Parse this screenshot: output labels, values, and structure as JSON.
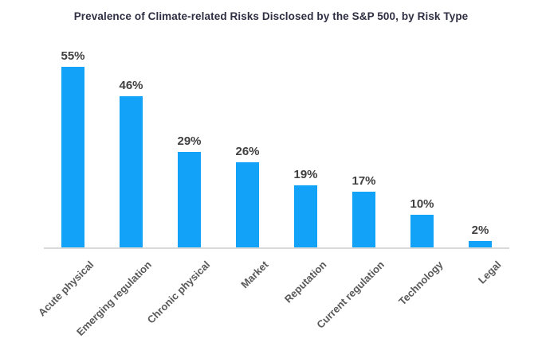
{
  "chart_data": {
    "type": "bar",
    "title": "Prevalence of Climate-related Risks Disclosed by the S&P 500, by Risk Type",
    "categories": [
      "Acute physical",
      "Emerging regulation",
      "Chronic physical",
      "Market",
      "Reputation",
      "Current regulation",
      "Technology",
      "Legal"
    ],
    "values": [
      55,
      46,
      29,
      26,
      19,
      17,
      10,
      2
    ],
    "value_labels": [
      "55%",
      "46%",
      "29%",
      "26%",
      "19%",
      "17%",
      "10%",
      "2%"
    ],
    "xlabel": "",
    "ylabel": "",
    "ylim": [
      0,
      60
    ],
    "grid": false,
    "legend": false,
    "category_label_rotation_deg": 45,
    "colors": {
      "bar": "#12a3f8",
      "value_label": "#404040",
      "category_label": "#595959",
      "title": "#2e2f42",
      "axis_line": "#d9d9d9",
      "background": "#ffffff"
    }
  }
}
